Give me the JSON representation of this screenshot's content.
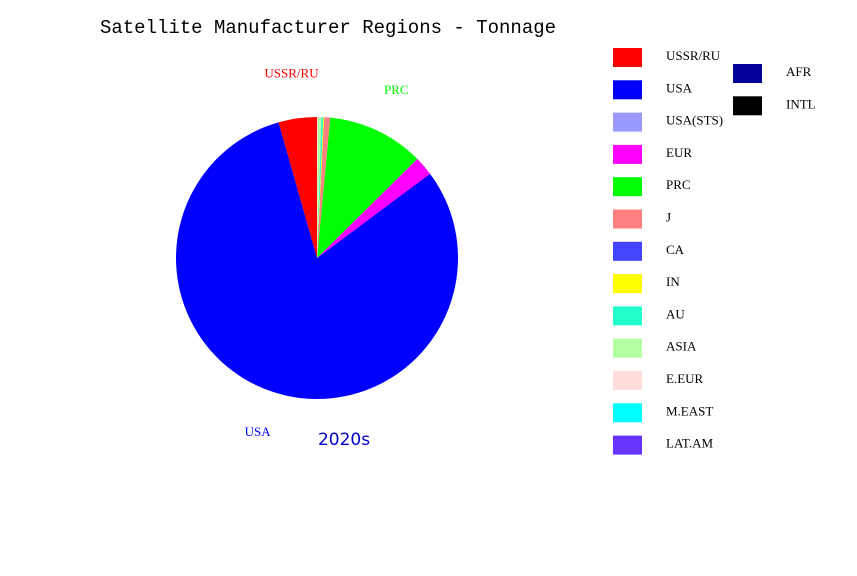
{
  "chart_data": {
    "type": "pie",
    "title": "Satellite Manufacturer Regions - Tonnage",
    "subtitle": "2020s",
    "categories": [
      "USSR/RU",
      "USA",
      "USA(STS)",
      "EUR",
      "PRC",
      "J",
      "CA",
      "IN",
      "AU",
      "ASIA",
      "E.EUR",
      "M.EAST",
      "LAT.AM",
      "AFR",
      "INTL"
    ],
    "values": [
      4.4,
      80.8,
      0,
      2.2,
      11.1,
      0.7,
      0,
      0.1,
      0.2,
      0.4,
      0.1,
      0,
      0,
      0,
      0
    ],
    "colors": [
      "#ff0000",
      "#0000ff",
      "#9999ff",
      "#ff00ff",
      "#00ff00",
      "#ff8080",
      "#4444ff",
      "#ffff00",
      "#22ffcc",
      "#b3ffa3",
      "#ffdddd",
      "#00ffff",
      "#6633ff",
      "#000099",
      "#000000"
    ]
  }
}
